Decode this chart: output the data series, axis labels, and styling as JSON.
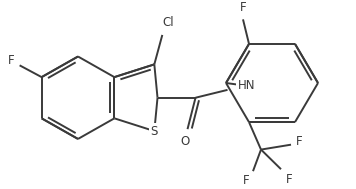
{
  "background_color": "#ffffff",
  "line_color": "#3a3a3a",
  "text_color": "#3a3a3a",
  "bond_width": 1.4,
  "figsize": [
    3.56,
    1.89
  ],
  "dpi": 100,
  "xlim": [
    0,
    356
  ],
  "ylim": [
    0,
    189
  ],
  "font_size": 8.5
}
